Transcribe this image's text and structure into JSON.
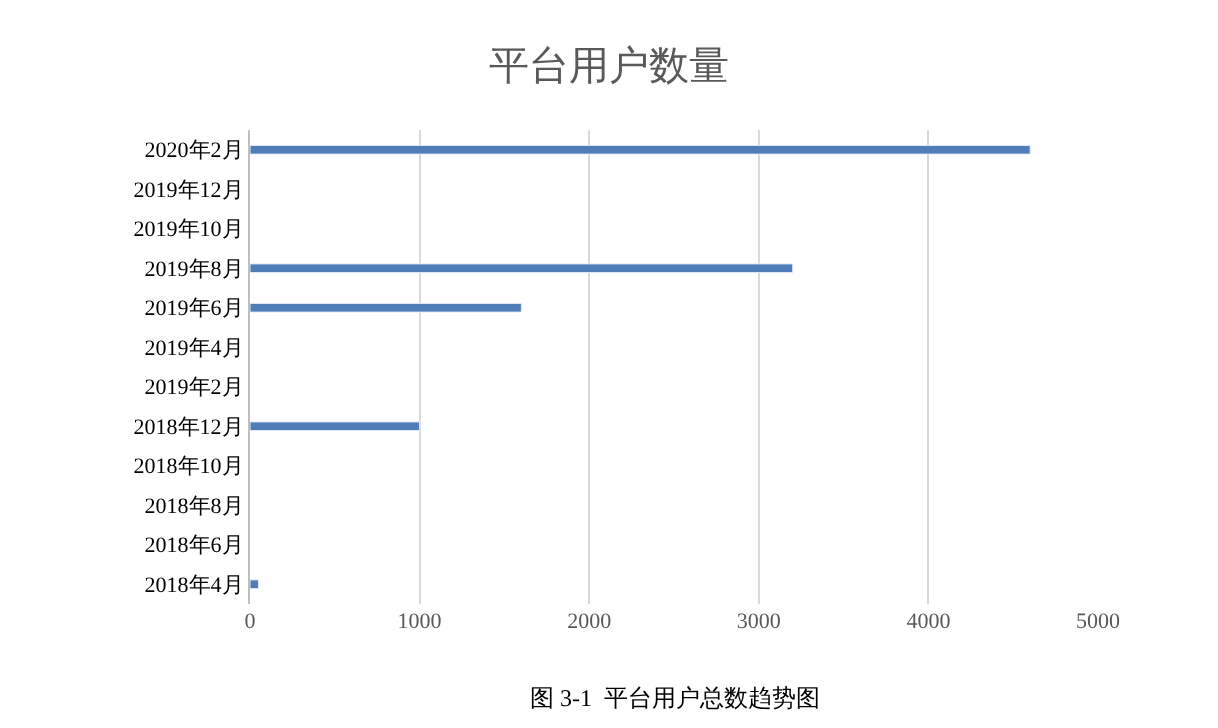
{
  "chart_data": {
    "type": "bar",
    "orientation": "horizontal",
    "title": "平台用户数量",
    "categories": [
      "2020年2月",
      "2019年12月",
      "2019年10月",
      "2019年8月",
      "2019年6月",
      "2019年4月",
      "2019年2月",
      "2018年12月",
      "2018年10月",
      "2018年8月",
      "2018年6月",
      "2018年4月"
    ],
    "values": [
      4600,
      null,
      null,
      3200,
      1600,
      null,
      null,
      1000,
      null,
      null,
      null,
      50
    ],
    "color": "#4e7db8",
    "xlim": [
      0,
      5000
    ],
    "xticks": [
      0,
      1000,
      2000,
      3000,
      4000,
      5000
    ],
    "grid": "x",
    "legend": false,
    "annotations": [
      "图 3-1  平台用户总数趋势图"
    ]
  }
}
